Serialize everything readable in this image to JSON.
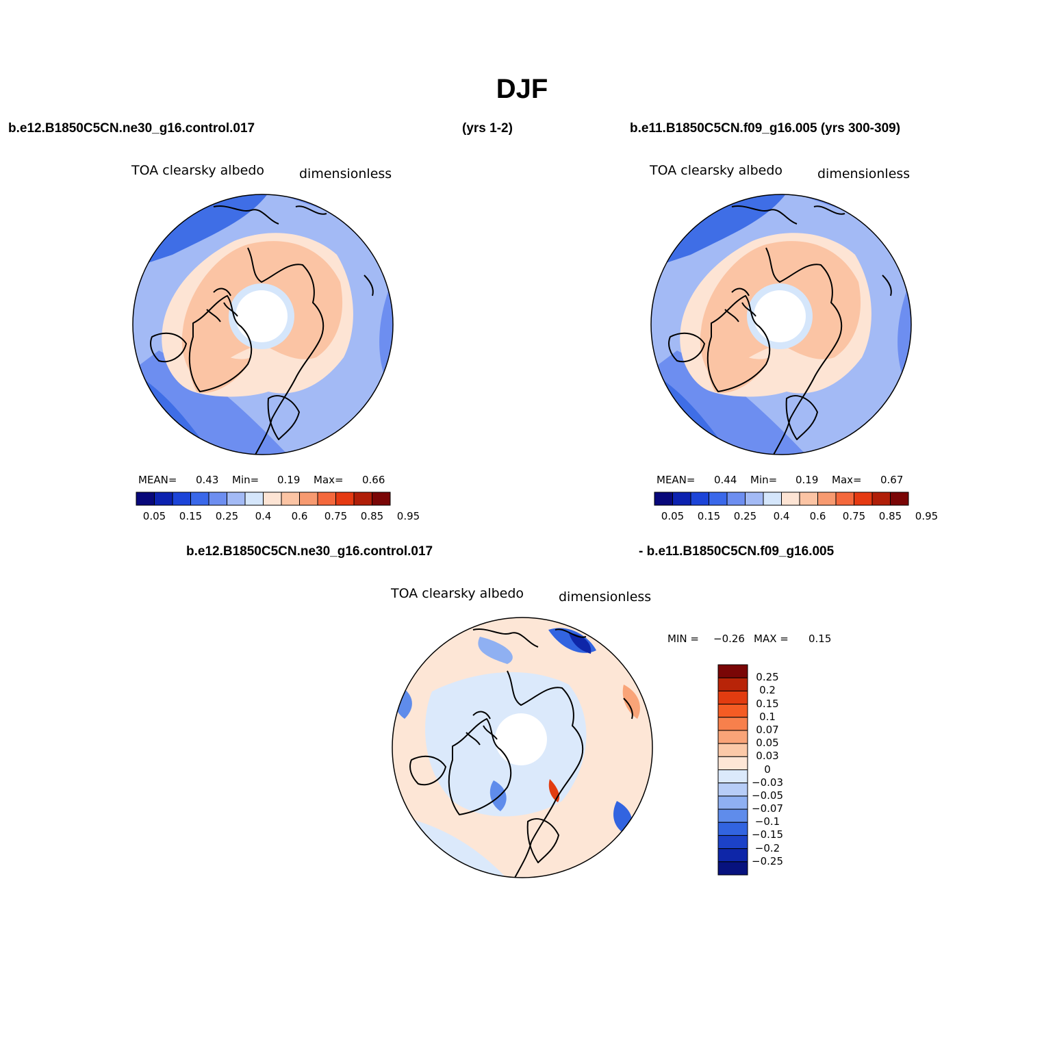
{
  "title": "DJF",
  "header": {
    "top_left": "b.e12.B1850C5CN.ne30_g16.control.017",
    "top_mid": "(yrs 1-2)",
    "top_right": "b.e11.B1850C5CN.f09_g16.005 (yrs 300-309)",
    "diff_left": "b.e12.B1850C5CN.ne30_g16.control.017",
    "diff_right": "- b.e11.B1850C5CN.f09_g16.005"
  },
  "maps": [
    {
      "id": "map-1",
      "variable": "TOA clearsky albedo",
      "units": "dimensionless",
      "stats": {
        "mean_label": "MEAN=",
        "mean": "0.43",
        "min_label": "Min=",
        "min": "0.19",
        "max_label": "Max=",
        "max": "0.66"
      },
      "colorbar_ticks": [
        "0.05",
        "0.15",
        "0.25",
        "0.4",
        "0.6",
        "0.75",
        "0.85",
        "0.95"
      ]
    },
    {
      "id": "map-2",
      "variable": "TOA clearsky albedo",
      "units": "dimensionless",
      "stats": {
        "mean_label": "MEAN=",
        "mean": "0.44",
        "min_label": "Min=",
        "min": "0.19",
        "max_label": "Max=",
        "max": "0.67"
      },
      "colorbar_ticks": [
        "0.05",
        "0.15",
        "0.25",
        "0.4",
        "0.6",
        "0.75",
        "0.85",
        "0.95"
      ]
    }
  ],
  "diff_map": {
    "variable": "TOA clearsky albedo",
    "units": "dimensionless",
    "stats": {
      "min_label": "MIN =",
      "min": "−0.26",
      "max_label": "MAX =",
      "max": "0.15"
    },
    "colorbar_ticks": [
      "0.25",
      "0.2",
      "0.15",
      "0.1",
      "0.07",
      "0.05",
      "0.03",
      "0",
      "−0.03",
      "−0.05",
      "−0.07",
      "−0.1",
      "−0.15",
      "−0.2",
      "−0.25"
    ]
  },
  "colors": {
    "abs_scale": [
      "#08087a",
      "#0c22b0",
      "#1c44d8",
      "#3a68ea",
      "#6d8ef0",
      "#a3baf5",
      "#d5e6fb",
      "#fde4d4",
      "#fbc4a4",
      "#f79a70",
      "#f4683c",
      "#e53a12",
      "#b01e08",
      "#7a0606"
    ],
    "diff_scale_top_to_bottom": [
      "#7a0606",
      "#b82408",
      "#e23c10",
      "#f45c24",
      "#f7804c",
      "#f9a478",
      "#fbc9a8",
      "#fde6d6",
      "#dbe9fb",
      "#b7cdf7",
      "#8fb0f2",
      "#5f8ceb",
      "#3264e0",
      "#1c42c8",
      "#0e26a8",
      "#07127e"
    ],
    "map_colors": {
      "ocean_dark": "#3f6ee6",
      "ocean_mid": "#6d8ef0",
      "ocean_light": "#a3baf5",
      "near_white_blue": "#d5e6fb",
      "land_peach": "#fbc4a4",
      "land_light": "#fde4d4",
      "pole_hole": "#ffffff"
    }
  }
}
